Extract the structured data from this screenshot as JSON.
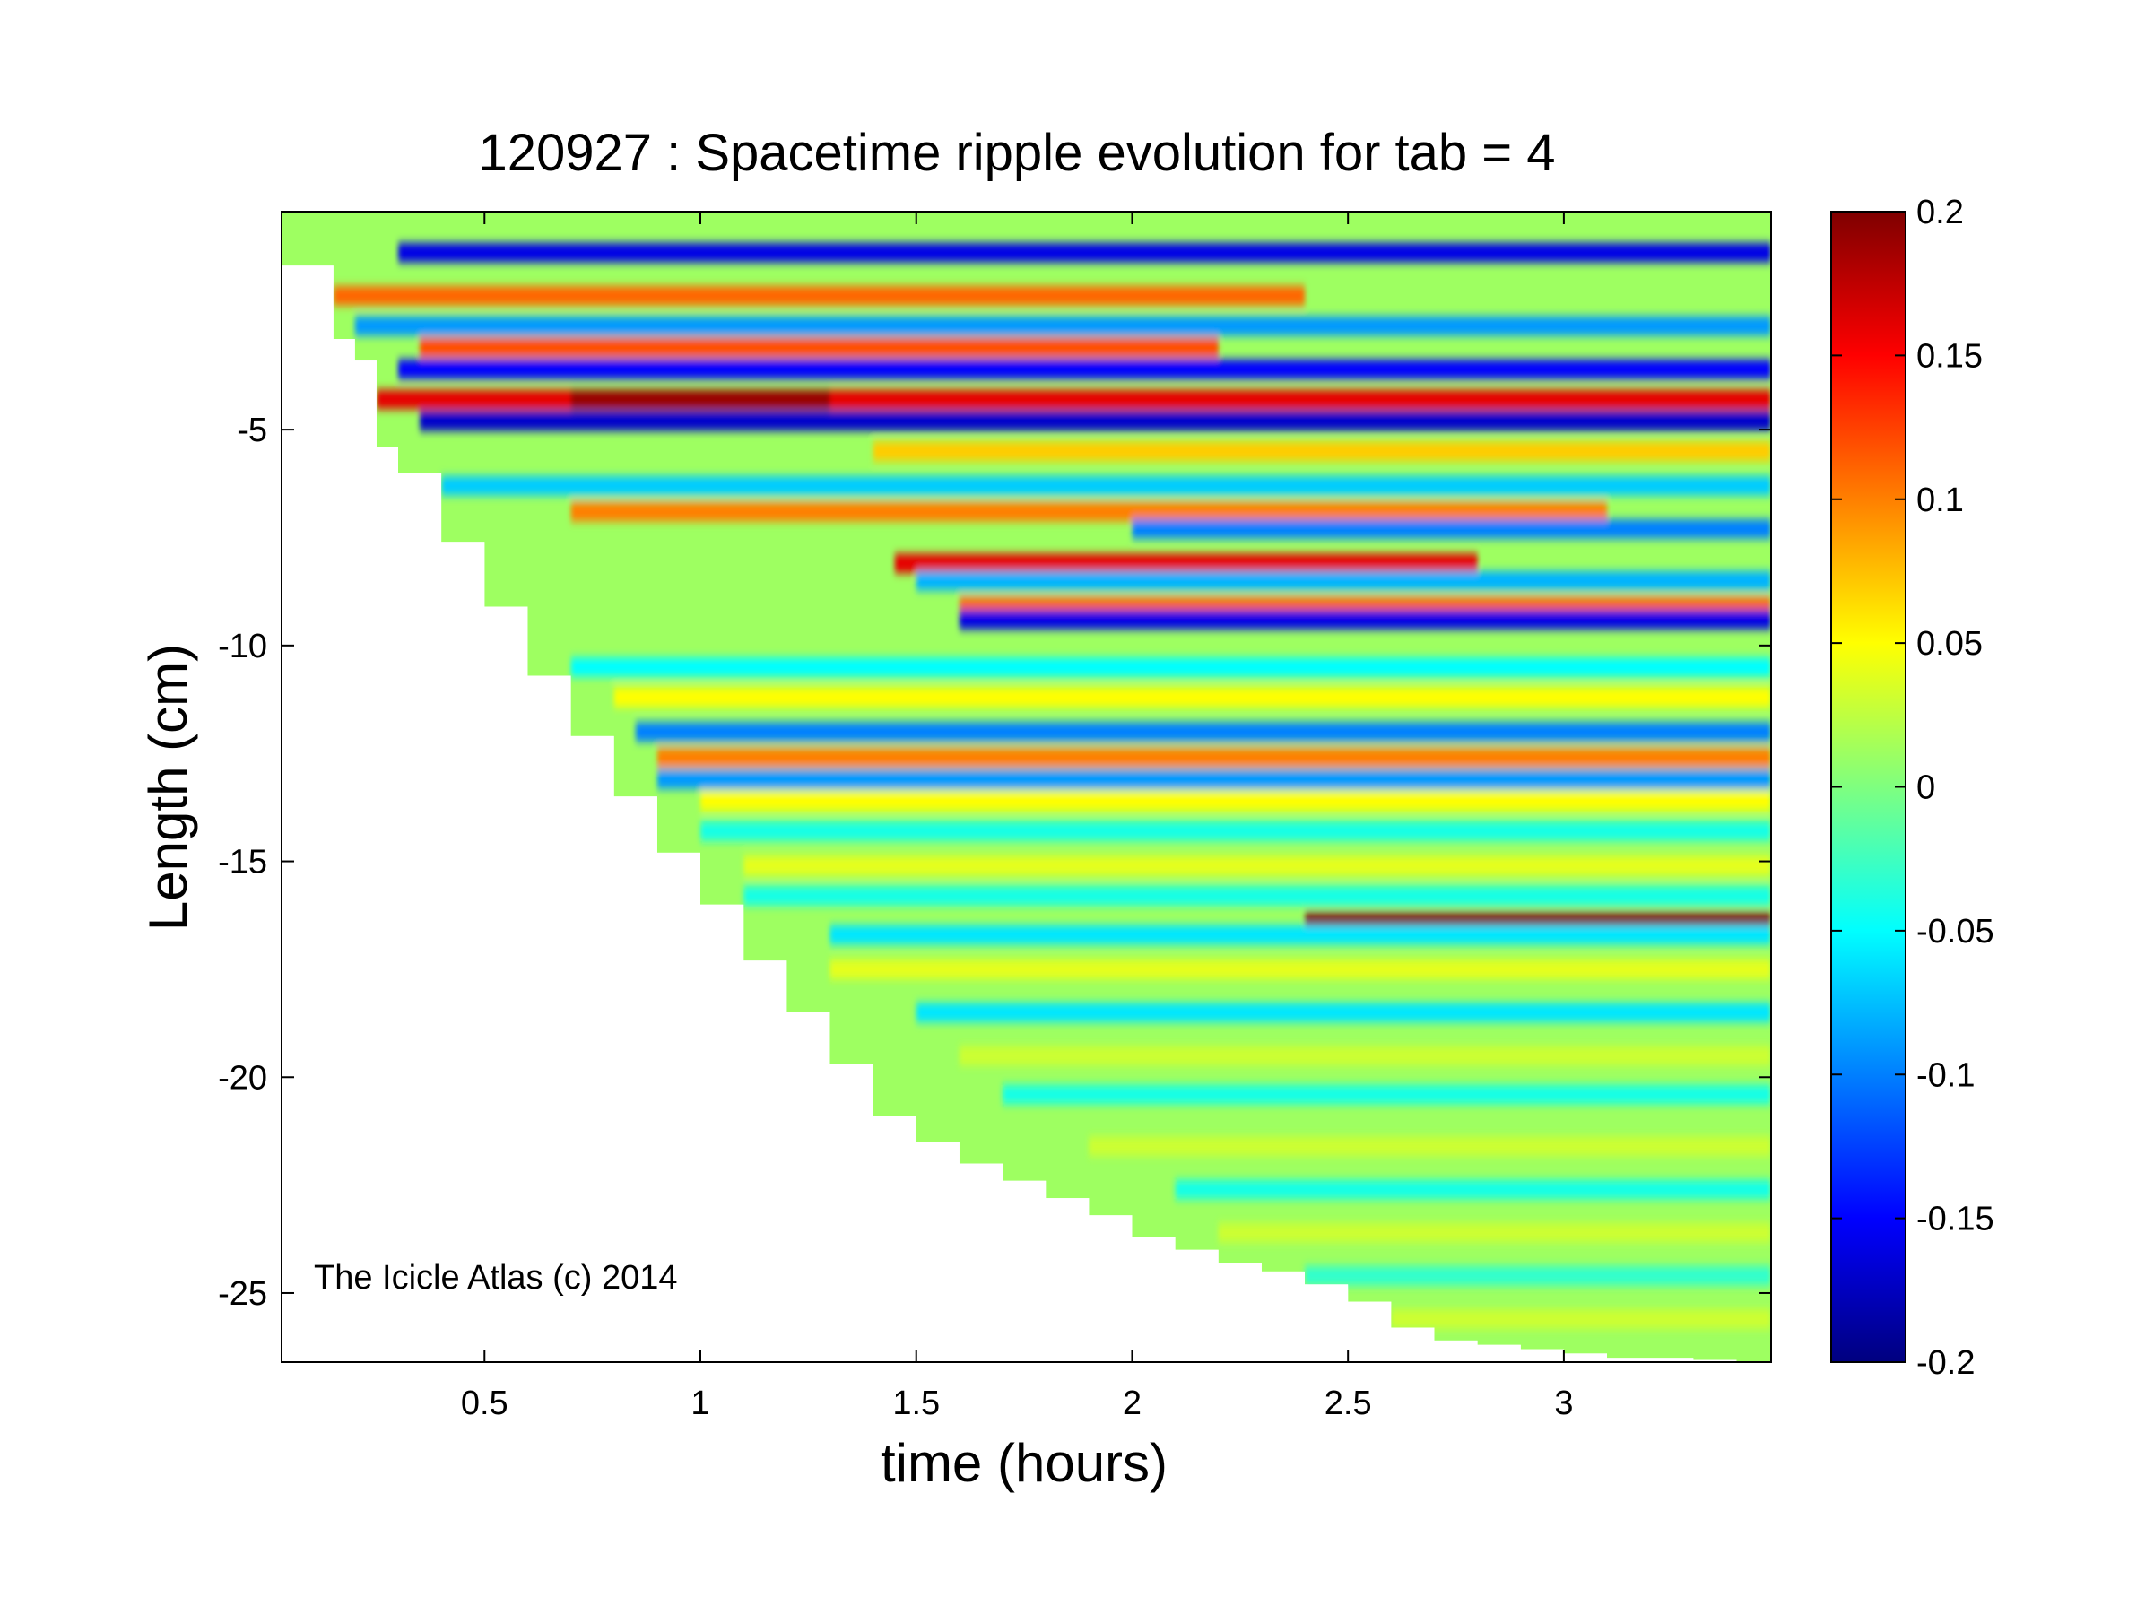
{
  "chart_data": {
    "type": "heatmap",
    "title": "120927 : Spacetime ripple evolution for tab = 4",
    "xlabel": "time (hours)",
    "ylabel": "Length (cm)",
    "annotation": "The Icicle Atlas (c) 2014",
    "xlim": [
      0.03,
      3.48
    ],
    "ylim": [
      -26.6,
      0.05
    ],
    "xticks": [
      0.5,
      1,
      1.5,
      2,
      2.5,
      3
    ],
    "xtick_labels": [
      "0.5",
      "1",
      "1.5",
      "2",
      "2.5",
      "3"
    ],
    "yticks": [
      -5,
      -10,
      -15,
      -20,
      -25
    ],
    "ytick_labels": [
      "-5",
      "-10",
      "-15",
      "-20",
      "-25"
    ],
    "colormap": "jet",
    "clim": [
      -0.2,
      0.2
    ],
    "colorbar_ticks": [
      0.2,
      0.15,
      0.1,
      0.05,
      0,
      -0.05,
      -0.1,
      -0.15,
      -0.2
    ],
    "colorbar_tick_labels": [
      "0.2",
      "0.15",
      "0.1",
      "0.05",
      "0",
      "-0.05",
      "-0.1",
      "-0.15",
      "-0.2"
    ],
    "grid": false,
    "envelope_boundary": {
      "time": [
        0.03,
        0.1,
        0.15,
        0.2,
        0.25,
        0.3,
        0.4,
        0.5,
        0.6,
        0.7,
        0.8,
        0.9,
        1.0,
        1.1,
        1.2,
        1.3,
        1.4,
        1.5,
        1.6,
        1.7,
        1.8,
        1.9,
        2.0,
        2.1,
        2.2,
        2.3,
        2.4,
        2.5,
        2.6,
        2.7,
        2.8,
        2.9,
        3.0,
        3.1,
        3.2,
        3.3,
        3.4,
        3.48
      ],
      "length": [
        -1.2,
        -1.2,
        -2.9,
        -3.4,
        -5.4,
        -6.0,
        -7.6,
        -9.1,
        -10.7,
        -12.1,
        -13.5,
        -14.8,
        -16.0,
        -17.3,
        -18.5,
        -19.7,
        -20.9,
        -21.5,
        -22.0,
        -22.4,
        -22.8,
        -23.2,
        -23.7,
        -24.0,
        -24.3,
        -24.5,
        -24.8,
        -25.2,
        -25.8,
        -26.1,
        -26.2,
        -26.3,
        -26.4,
        -26.5,
        -26.5,
        -26.55,
        -26.6,
        -26.6
      ]
    },
    "ripple_bands": [
      {
        "length": -0.9,
        "t_start": 0.3,
        "t_end": 3.48,
        "value": -0.16
      },
      {
        "length": -1.9,
        "t_start": 0.15,
        "t_end": 2.4,
        "value": 0.11
      },
      {
        "length": -2.6,
        "t_start": 0.2,
        "t_end": 3.48,
        "value": -0.09
      },
      {
        "length": -3.1,
        "t_start": 0.35,
        "t_end": 2.2,
        "value": 0.12
      },
      {
        "length": -3.6,
        "t_start": 0.3,
        "t_end": 3.48,
        "value": -0.15
      },
      {
        "length": -4.3,
        "t_start": 0.25,
        "t_end": 3.48,
        "value": 0.16
      },
      {
        "length": -4.3,
        "t_start": 0.7,
        "t_end": 1.3,
        "value": 0.19
      },
      {
        "length": -4.8,
        "t_start": 0.35,
        "t_end": 3.48,
        "value": -0.17
      },
      {
        "length": -5.5,
        "t_start": 1.4,
        "t_end": 3.48,
        "value": 0.07
      },
      {
        "length": -6.3,
        "t_start": 0.4,
        "t_end": 3.48,
        "value": -0.07
      },
      {
        "length": -6.9,
        "t_start": 0.7,
        "t_end": 3.1,
        "value": 0.1
      },
      {
        "length": -7.3,
        "t_start": 2.0,
        "t_end": 3.48,
        "value": -0.1
      },
      {
        "length": -8.1,
        "t_start": 1.45,
        "t_end": 2.8,
        "value": 0.16
      },
      {
        "length": -8.5,
        "t_start": 1.5,
        "t_end": 3.48,
        "value": -0.08
      },
      {
        "length": -9.1,
        "t_start": 1.6,
        "t_end": 3.48,
        "value": 0.11
      },
      {
        "length": -9.4,
        "t_start": 1.6,
        "t_end": 3.48,
        "value": -0.16
      },
      {
        "length": -10.5,
        "t_start": 0.7,
        "t_end": 3.48,
        "value": -0.05
      },
      {
        "length": -11.2,
        "t_start": 0.8,
        "t_end": 3.48,
        "value": 0.05
      },
      {
        "length": -12.0,
        "t_start": 0.85,
        "t_end": 3.48,
        "value": -0.1
      },
      {
        "length": -12.6,
        "t_start": 0.9,
        "t_end": 3.48,
        "value": 0.1
      },
      {
        "length": -13.1,
        "t_start": 0.9,
        "t_end": 3.48,
        "value": -0.09
      },
      {
        "length": -13.6,
        "t_start": 1.0,
        "t_end": 3.48,
        "value": 0.05
      },
      {
        "length": -14.3,
        "t_start": 1.0,
        "t_end": 3.48,
        "value": -0.04
      },
      {
        "length": -15.1,
        "t_start": 1.1,
        "t_end": 3.48,
        "value": 0.04
      },
      {
        "length": -15.8,
        "t_start": 1.1,
        "t_end": 3.48,
        "value": -0.04
      },
      {
        "length": -16.4,
        "t_start": 2.4,
        "t_end": 3.48,
        "value": 0.2
      },
      {
        "length": -16.7,
        "t_start": 1.3,
        "t_end": 3.48,
        "value": -0.06
      },
      {
        "length": -17.5,
        "t_start": 1.3,
        "t_end": 3.48,
        "value": 0.04
      },
      {
        "length": -18.5,
        "t_start": 1.5,
        "t_end": 3.48,
        "value": -0.06
      },
      {
        "length": -19.5,
        "t_start": 1.6,
        "t_end": 3.48,
        "value": 0.03
      },
      {
        "length": -20.4,
        "t_start": 1.7,
        "t_end": 3.48,
        "value": -0.04
      },
      {
        "length": -21.6,
        "t_start": 1.9,
        "t_end": 3.48,
        "value": 0.03
      },
      {
        "length": -22.6,
        "t_start": 2.1,
        "t_end": 3.48,
        "value": -0.04
      },
      {
        "length": -23.6,
        "t_start": 2.2,
        "t_end": 3.48,
        "value": 0.03
      },
      {
        "length": -24.6,
        "t_start": 2.4,
        "t_end": 3.48,
        "value": -0.03
      },
      {
        "length": -25.6,
        "t_start": 2.6,
        "t_end": 3.48,
        "value": 0.03
      }
    ]
  }
}
